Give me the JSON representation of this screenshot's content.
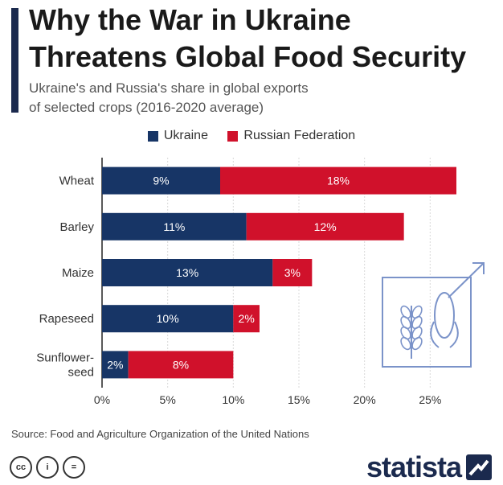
{
  "header": {
    "title_line1": "Why the War in Ukraine",
    "title_line2": "Threatens Global Food Security",
    "subtitle_line1": "Ukraine's and Russia's share in global exports",
    "subtitle_line2": "of selected crops (2016-2020 average)"
  },
  "colors": {
    "ukraine": "#173566",
    "russia": "#d0112b",
    "accent": "#1b2a4e",
    "grid": "#d9d9d9",
    "axis": "#222222",
    "icon": "#7b93c9"
  },
  "chart_data": {
    "type": "bar",
    "orientation": "horizontal",
    "stacked": true,
    "categories": [
      [
        "Wheat"
      ],
      [
        "Barley"
      ],
      [
        "Maize"
      ],
      [
        "Rapeseed"
      ],
      [
        "Sunflower-",
        "seed"
      ]
    ],
    "series": [
      {
        "name": "Ukraine",
        "values": [
          9,
          11,
          13,
          10,
          2
        ],
        "labels": [
          "9%",
          "11%",
          "13%",
          "10%",
          "2%"
        ]
      },
      {
        "name": "Russian Federation",
        "values": [
          18,
          12,
          3,
          2,
          8
        ],
        "labels": [
          "18%",
          "12%",
          "3%",
          "2%",
          "8%"
        ]
      }
    ],
    "xlim": [
      0,
      27
    ],
    "xticks": [
      0,
      5,
      10,
      15,
      20,
      25
    ],
    "xtick_labels": [
      "0%",
      "5%",
      "10%",
      "15%",
      "20%",
      "25%"
    ],
    "grid": true,
    "legend_position": "top-center"
  },
  "footer": {
    "source": "Source: Food and Agriculture Organization of the United Nations",
    "license_icons": [
      "cc",
      "i",
      "="
    ],
    "brand": "statista"
  }
}
